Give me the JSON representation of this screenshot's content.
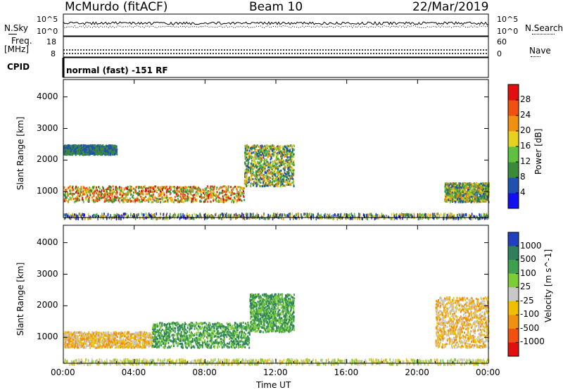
{
  "header": {
    "station": "McMurdo (fitACF)",
    "beam": "Beam 10",
    "date": "22/Mar/2019"
  },
  "top_panels": {
    "nsky_label": "N.Sky",
    "nsearch_label": "N.Search",
    "nsky_ticks": [
      "10^5",
      "10^0"
    ],
    "nsearch_ticks": [
      "10^5",
      "10^0"
    ],
    "freq_label": "Freq.",
    "freq_unit": "[MHz]",
    "freq_ticks": [
      "18",
      "8"
    ],
    "nave_label": "Nave",
    "nave_ticks": [
      "60",
      "0"
    ],
    "cpid_label": "CPID",
    "cpid_text": "normal (fast) -151 RF"
  },
  "chart_data": [
    {
      "type": "heatmap",
      "name": "power",
      "ylabel": "Slant Range [km]",
      "ylim": [
        180,
        4550
      ],
      "yticks": [
        "1000",
        "2000",
        "3000",
        "4000"
      ],
      "xticks": [
        "00:00",
        "04:00",
        "08:00",
        "12:00",
        "16:00",
        "20:00",
        "00:00"
      ],
      "colorbar_label": "Power [dB]",
      "colorbar_ticks": [
        "4",
        "8",
        "12",
        "16",
        "20",
        "24",
        "28"
      ],
      "colorbar_colors": [
        "#1010f0",
        "#2050b0",
        "#3a8a3a",
        "#60c040",
        "#e6d020",
        "#f09010",
        "#f05010",
        "#e01010"
      ],
      "features": [
        {
          "range_from_km": 700,
          "range_to_km": 1200,
          "time_from_h": 0.0,
          "time_to_h": 10.2,
          "level": "high"
        },
        {
          "range_from_km": 1200,
          "range_to_km": 2500,
          "time_from_h": 10.2,
          "time_to_h": 13.0,
          "level": "mid"
        },
        {
          "range_from_km": 2200,
          "range_to_km": 2500,
          "time_from_h": 0.0,
          "time_to_h": 3.0,
          "level": "low"
        },
        {
          "range_from_km": 700,
          "range_to_km": 1300,
          "time_from_h": 21.5,
          "time_to_h": 24.0,
          "level": "mid"
        }
      ]
    },
    {
      "type": "heatmap",
      "name": "velocity",
      "ylabel": "Slant Range [km]",
      "ylim": [
        180,
        4550
      ],
      "yticks": [
        "1000",
        "2000",
        "3000",
        "4000"
      ],
      "xticks": [
        "00:00",
        "04:00",
        "08:00",
        "12:00",
        "16:00",
        "20:00",
        "00:00"
      ],
      "xlabel": "Time UT",
      "colorbar_label": "Velocity [m s^-1]",
      "colorbar_ticks": [
        "1000",
        "500",
        "100",
        "25",
        "-25",
        "-100",
        "-500",
        "-1000"
      ],
      "colorbar_colors": [
        "#2040c0",
        "#2f7f5f",
        "#3ea04e",
        "#7ccd36",
        "#c8c8c8",
        "#f0c000",
        "#f09010",
        "#f05010",
        "#e01010"
      ],
      "features": [
        {
          "range_from_km": 700,
          "range_to_km": 1200,
          "time_from_h": 0.0,
          "time_to_h": 5.0,
          "velocity": "negative"
        },
        {
          "range_from_km": 700,
          "range_to_km": 1500,
          "time_from_h": 5.0,
          "time_to_h": 10.5,
          "velocity": "positive"
        },
        {
          "range_from_km": 1200,
          "range_to_km": 2400,
          "time_from_h": 10.5,
          "time_to_h": 13.0,
          "velocity": "positive"
        },
        {
          "range_from_km": 700,
          "range_to_km": 2300,
          "time_from_h": 21.0,
          "time_to_h": 24.0,
          "velocity": "negative"
        }
      ]
    }
  ]
}
